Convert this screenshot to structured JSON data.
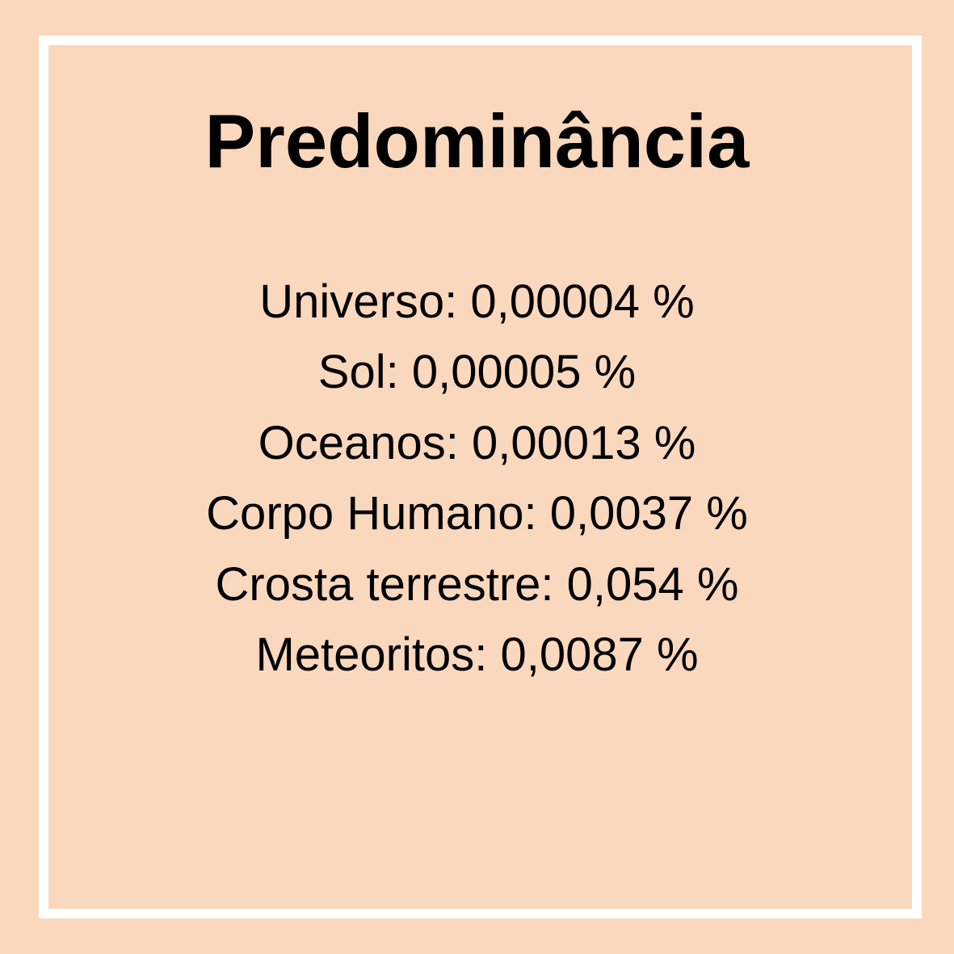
{
  "colors": {
    "background": "#fad8bd",
    "frame": "#ffffff",
    "text": "#000000"
  },
  "title": "Predominância",
  "items": [
    {
      "label": "Universo",
      "value": "0,00004 %"
    },
    {
      "label": "Sol",
      "value": "0,00005 %"
    },
    {
      "label": "Oceanos",
      "value": "0,00013 %"
    },
    {
      "label": "Corpo Humano",
      "value": "0,0037 %"
    },
    {
      "label": "Crosta terrestre",
      "value": "0,054 %"
    },
    {
      "label": "Meteoritos",
      "value": "0,0087 %"
    }
  ]
}
